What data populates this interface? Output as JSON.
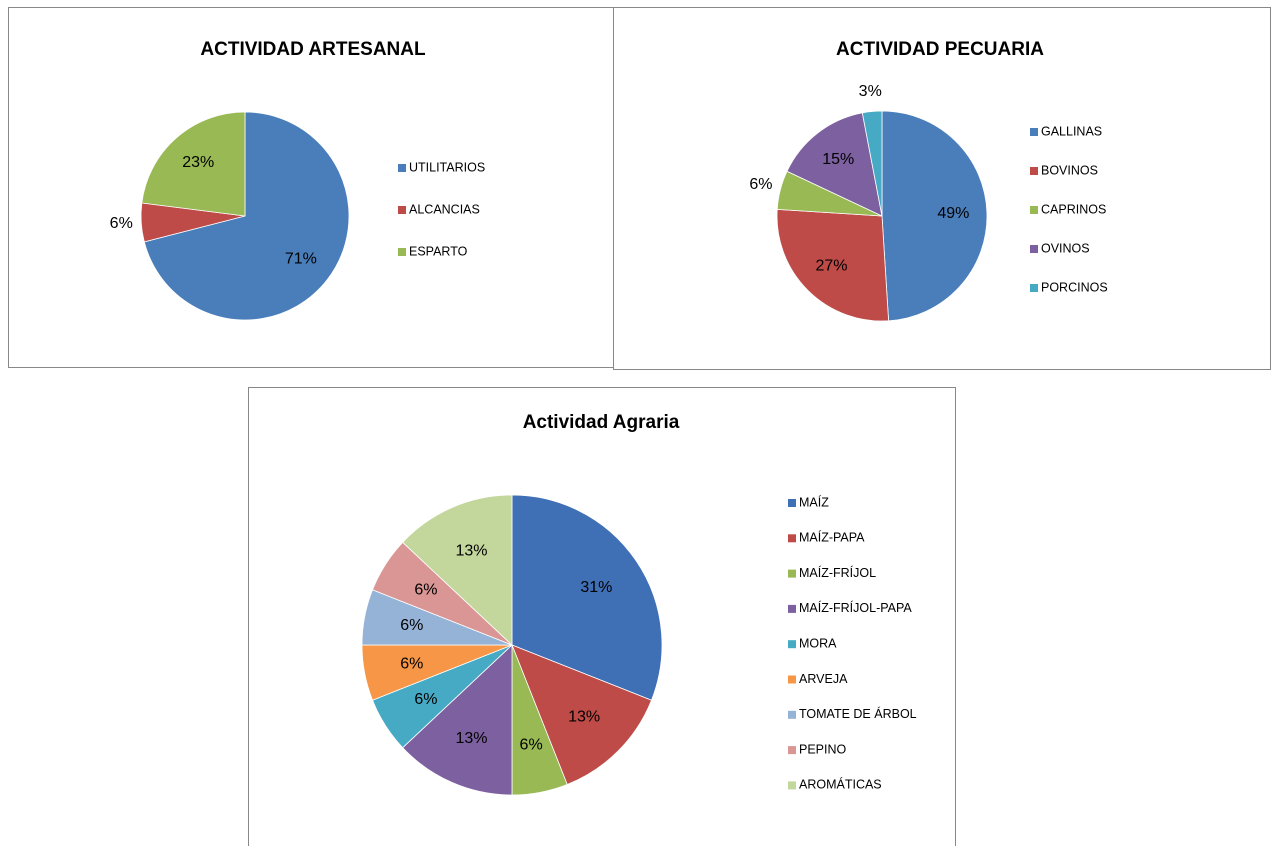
{
  "chart_data": [
    {
      "type": "pie",
      "title": "ACTIVIDAD ARTESANAL",
      "categories": [
        "UTILITARIOS",
        "ALCANCIAS",
        "ESPARTO"
      ],
      "values": [
        71,
        6,
        23
      ],
      "value_labels": [
        "71%",
        "6%",
        "23%"
      ],
      "colors": [
        "#4a7ebb",
        "#be4b48",
        "#98b954"
      ]
    },
    {
      "type": "pie",
      "title": "ACTIVIDAD PECUARIA",
      "categories": [
        "GALLINAS",
        "BOVINOS",
        "CAPRINOS",
        "OVINOS",
        "PORCINOS"
      ],
      "values": [
        49,
        27,
        6,
        15,
        3
      ],
      "value_labels": [
        "49%",
        "27%",
        "6%",
        "15%",
        "3%"
      ],
      "colors": [
        "#4a7ebb",
        "#be4b48",
        "#98b954",
        "#7d60a0",
        "#46aac5"
      ]
    },
    {
      "type": "pie",
      "title": "Actividad Agraria",
      "categories": [
        "MAÍZ",
        "MAÍZ-PAPA",
        "MAÍZ-FRÍJOL",
        "MAÍZ-FRÍJOL-PAPA",
        "MORA",
        "ARVEJA",
        "TOMATE DE ÁRBOL",
        "PEPINO",
        "AROMÁTICAS"
      ],
      "values": [
        31,
        13,
        6,
        13,
        6,
        6,
        6,
        6,
        13
      ],
      "value_labels": [
        "31%",
        "13%",
        "6%",
        "13%",
        "6%",
        "6%",
        "6%",
        "6%",
        "13%"
      ],
      "colors": [
        "#3f6fb5",
        "#be4b48",
        "#98b954",
        "#7d60a0",
        "#46aac5",
        "#f79646",
        "#95b3d7",
        "#d99694",
        "#c3d69b"
      ]
    }
  ]
}
